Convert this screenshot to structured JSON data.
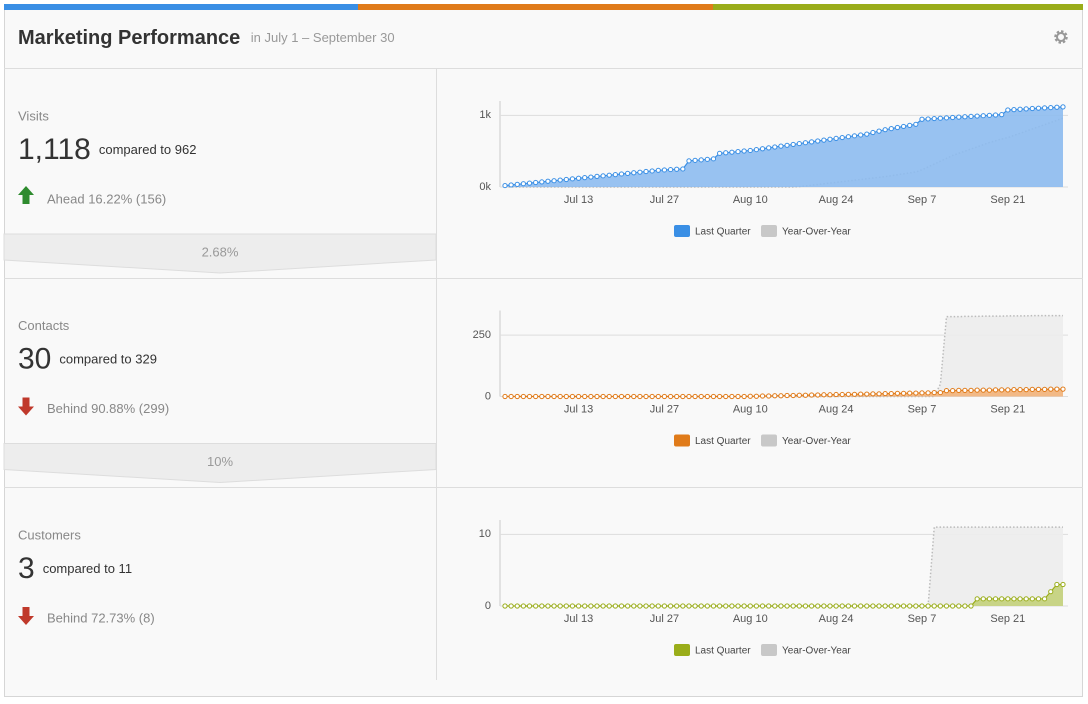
{
  "header": {
    "title": "Marketing Performance",
    "subtitle": "in July 1 – September 30"
  },
  "panels": [
    {
      "label": "Visits",
      "value": "1,118",
      "compare": "compared to 962",
      "status": "Ahead 16.22% (156)",
      "direction": "up"
    },
    {
      "label": "Contacts",
      "value": "30",
      "compare": "compared to 329",
      "status": "Behind 90.88% (299)",
      "direction": "down"
    },
    {
      "label": "Customers",
      "value": "3",
      "compare": "compared to 11",
      "status": "Behind 72.73% (8)",
      "direction": "down"
    }
  ],
  "conversions": [
    "2.68%",
    "10%"
  ],
  "chart_data": [
    {
      "type": "area",
      "categories": [
        null,
        null,
        null,
        null,
        null,
        null,
        null,
        null,
        null,
        null,
        null,
        null,
        "Jul 13",
        null,
        null,
        null,
        null,
        null,
        null,
        null,
        null,
        null,
        null,
        null,
        null,
        null,
        "Jul 27",
        null,
        null,
        null,
        null,
        null,
        null,
        null,
        null,
        null,
        null,
        null,
        null,
        null,
        "Aug 10",
        null,
        null,
        null,
        null,
        null,
        null,
        null,
        null,
        null,
        null,
        null,
        null,
        null,
        "Aug 24",
        null,
        null,
        null,
        null,
        null,
        null,
        null,
        null,
        null,
        null,
        null,
        null,
        null,
        "Sep 7",
        null,
        null,
        null,
        null,
        null,
        null,
        null,
        null,
        null,
        null,
        null,
        null,
        null,
        "Sep 21",
        null,
        null,
        null,
        null,
        null,
        null,
        null,
        null,
        null
      ],
      "ylim": [
        0,
        1200
      ],
      "yticks": [
        {
          "value": 0,
          "label": "0k"
        },
        {
          "value": 1000,
          "label": "1k"
        }
      ],
      "grid": true,
      "series": [
        {
          "name": "Last Quarter",
          "color": "#3a8fe5",
          "fill_color": "#8dbbef",
          "markers": true,
          "line_style": "solid",
          "values": [
            20,
            29,
            37,
            46,
            54,
            63,
            71,
            80,
            88,
            97,
            105,
            114,
            122,
            131,
            139,
            148,
            156,
            165,
            173,
            182,
            190,
            199,
            207,
            216,
            224,
            233,
            238,
            243,
            248,
            252,
            365,
            372,
            379,
            386,
            393,
            470,
            478,
            486,
            494,
            502,
            510,
            522,
            534,
            546,
            558,
            570,
            582,
            594,
            606,
            618,
            630,
            642,
            654,
            666,
            678,
            690,
            702,
            714,
            726,
            738,
            760,
            780,
            800,
            815,
            830,
            845,
            860,
            875,
            945,
            950,
            955,
            960,
            965,
            970,
            975,
            980,
            985,
            990,
            995,
            1000,
            1005,
            1010,
            1075,
            1080,
            1085,
            1090,
            1095,
            1100,
            1104,
            1108,
            1113,
            1118
          ]
        },
        {
          "name": "Year-Over-Year",
          "color": "#bbbbbb",
          "fill_color": "#ececec",
          "markers": false,
          "line_style": "dotted",
          "values": [
            0,
            0,
            0,
            0,
            0,
            0,
            0,
            0,
            0,
            0,
            0,
            0,
            0,
            0,
            0,
            0,
            0,
            0,
            0,
            0,
            0,
            0,
            0,
            0,
            0,
            0,
            0,
            0,
            0,
            0,
            0,
            0,
            0,
            0,
            0,
            0,
            0,
            0,
            0,
            0,
            0,
            0,
            0,
            0,
            0,
            0,
            0,
            0,
            5,
            15,
            25,
            35,
            45,
            55,
            65,
            75,
            85,
            95,
            105,
            115,
            125,
            135,
            145,
            158,
            171,
            184,
            197,
            210,
            240,
            280,
            320,
            360,
            400,
            440,
            470,
            500,
            530,
            560,
            590,
            620,
            645,
            670,
            690,
            720,
            750,
            780,
            810,
            840,
            870,
            900,
            930,
            962
          ]
        }
      ]
    },
    {
      "type": "area",
      "categories": [
        null,
        null,
        null,
        null,
        null,
        null,
        null,
        null,
        null,
        null,
        null,
        null,
        "Jul 13",
        null,
        null,
        null,
        null,
        null,
        null,
        null,
        null,
        null,
        null,
        null,
        null,
        null,
        "Jul 27",
        null,
        null,
        null,
        null,
        null,
        null,
        null,
        null,
        null,
        null,
        null,
        null,
        null,
        "Aug 10",
        null,
        null,
        null,
        null,
        null,
        null,
        null,
        null,
        null,
        null,
        null,
        null,
        null,
        "Aug 24",
        null,
        null,
        null,
        null,
        null,
        null,
        null,
        null,
        null,
        null,
        null,
        null,
        null,
        "Sep 7",
        null,
        null,
        null,
        null,
        null,
        null,
        null,
        null,
        null,
        null,
        null,
        null,
        null,
        "Sep 21",
        null,
        null,
        null,
        null,
        null,
        null,
        null,
        null,
        null
      ],
      "ylim": [
        0,
        350
      ],
      "yticks": [
        0,
        250
      ],
      "grid": true,
      "series": [
        {
          "name": "Last Quarter",
          "color": "#e07b1a",
          "fill_color": "#f2b27a",
          "markers": true,
          "line_style": "solid",
          "values": [
            0,
            0,
            0,
            0,
            0,
            0,
            0,
            0,
            0,
            0,
            0,
            0,
            0,
            0,
            0,
            0,
            0,
            0,
            0,
            0,
            0,
            0,
            0,
            0,
            0,
            0,
            0,
            0,
            0,
            0,
            0,
            0,
            0,
            0,
            0,
            0,
            0,
            0,
            0,
            0,
            1,
            1,
            2,
            2,
            3,
            3,
            4,
            4,
            5,
            5,
            6,
            6,
            7,
            7,
            8,
            8,
            9,
            9,
            10,
            10,
            11,
            11,
            12,
            12,
            13,
            13,
            14,
            14,
            15,
            15,
            16,
            16,
            24,
            24,
            25,
            25,
            25,
            26,
            26,
            26,
            27,
            27,
            27,
            28,
            28,
            28,
            29,
            29,
            29,
            30,
            30,
            30
          ]
        },
        {
          "name": "Year-Over-Year",
          "color": "#bbbbbb",
          "fill_color": "#ececec",
          "markers": false,
          "line_style": "dotted",
          "values": [
            0,
            0,
            0,
            0,
            0,
            0,
            0,
            0,
            0,
            0,
            0,
            0,
            0,
            0,
            0,
            0,
            0,
            0,
            0,
            0,
            0,
            0,
            0,
            0,
            0,
            0,
            0,
            0,
            0,
            0,
            0,
            0,
            0,
            0,
            0,
            0,
            0,
            0,
            0,
            0,
            0,
            0,
            0,
            0,
            0,
            0,
            0,
            0,
            0,
            0,
            0,
            0,
            0,
            0,
            0,
            0,
            0,
            0,
            0,
            0,
            0,
            0,
            0,
            0,
            0,
            0,
            0,
            0,
            0,
            0,
            0,
            50,
            325,
            325,
            325,
            326,
            326,
            326,
            327,
            327,
            327,
            327,
            328,
            328,
            328,
            328,
            329,
            329,
            329,
            329,
            329,
            329
          ]
        }
      ]
    },
    {
      "type": "area",
      "categories": [
        null,
        null,
        null,
        null,
        null,
        null,
        null,
        null,
        null,
        null,
        null,
        null,
        "Jul 13",
        null,
        null,
        null,
        null,
        null,
        null,
        null,
        null,
        null,
        null,
        null,
        null,
        null,
        "Jul 27",
        null,
        null,
        null,
        null,
        null,
        null,
        null,
        null,
        null,
        null,
        null,
        null,
        null,
        "Aug 10",
        null,
        null,
        null,
        null,
        null,
        null,
        null,
        null,
        null,
        null,
        null,
        null,
        null,
        "Aug 24",
        null,
        null,
        null,
        null,
        null,
        null,
        null,
        null,
        null,
        null,
        null,
        null,
        null,
        "Sep 7",
        null,
        null,
        null,
        null,
        null,
        null,
        null,
        null,
        null,
        null,
        null,
        null,
        null,
        "Sep 21",
        null,
        null,
        null,
        null,
        null,
        null,
        null,
        null,
        null
      ],
      "ylim": [
        0,
        12
      ],
      "yticks": [
        0,
        10
      ],
      "grid": true,
      "series": [
        {
          "name": "Last Quarter",
          "color": "#9aad1a",
          "fill_color": "#c3d07a",
          "markers": true,
          "line_style": "solid",
          "values": [
            0,
            0,
            0,
            0,
            0,
            0,
            0,
            0,
            0,
            0,
            0,
            0,
            0,
            0,
            0,
            0,
            0,
            0,
            0,
            0,
            0,
            0,
            0,
            0,
            0,
            0,
            0,
            0,
            0,
            0,
            0,
            0,
            0,
            0,
            0,
            0,
            0,
            0,
            0,
            0,
            0,
            0,
            0,
            0,
            0,
            0,
            0,
            0,
            0,
            0,
            0,
            0,
            0,
            0,
            0,
            0,
            0,
            0,
            0,
            0,
            0,
            0,
            0,
            0,
            0,
            0,
            0,
            0,
            0,
            0,
            0,
            0,
            0,
            0,
            0,
            0,
            0,
            1,
            1,
            1,
            1,
            1,
            1,
            1,
            1,
            1,
            1,
            1,
            1,
            2,
            3,
            3
          ]
        },
        {
          "name": "Year-Over-Year",
          "color": "#bbbbbb",
          "fill_color": "#ececec",
          "markers": false,
          "line_style": "dotted",
          "values": [
            0,
            0,
            0,
            0,
            0,
            0,
            0,
            0,
            0,
            0,
            0,
            0,
            0,
            0,
            0,
            0,
            0,
            0,
            0,
            0,
            0,
            0,
            0,
            0,
            0,
            0,
            0,
            0,
            0,
            0,
            0,
            0,
            0,
            0,
            0,
            0,
            0,
            0,
            0,
            0,
            0,
            0,
            0,
            0,
            0,
            0,
            0,
            0,
            0,
            0,
            0,
            0,
            0,
            0,
            0,
            0,
            0,
            0,
            0,
            0,
            0,
            0,
            0,
            0,
            0,
            0,
            0,
            0,
            0,
            0,
            11,
            11,
            11,
            11,
            11,
            11,
            11,
            11,
            11,
            11,
            11,
            11,
            11,
            11,
            11,
            11,
            11,
            11,
            11,
            11,
            11,
            11
          ]
        }
      ]
    }
  ]
}
